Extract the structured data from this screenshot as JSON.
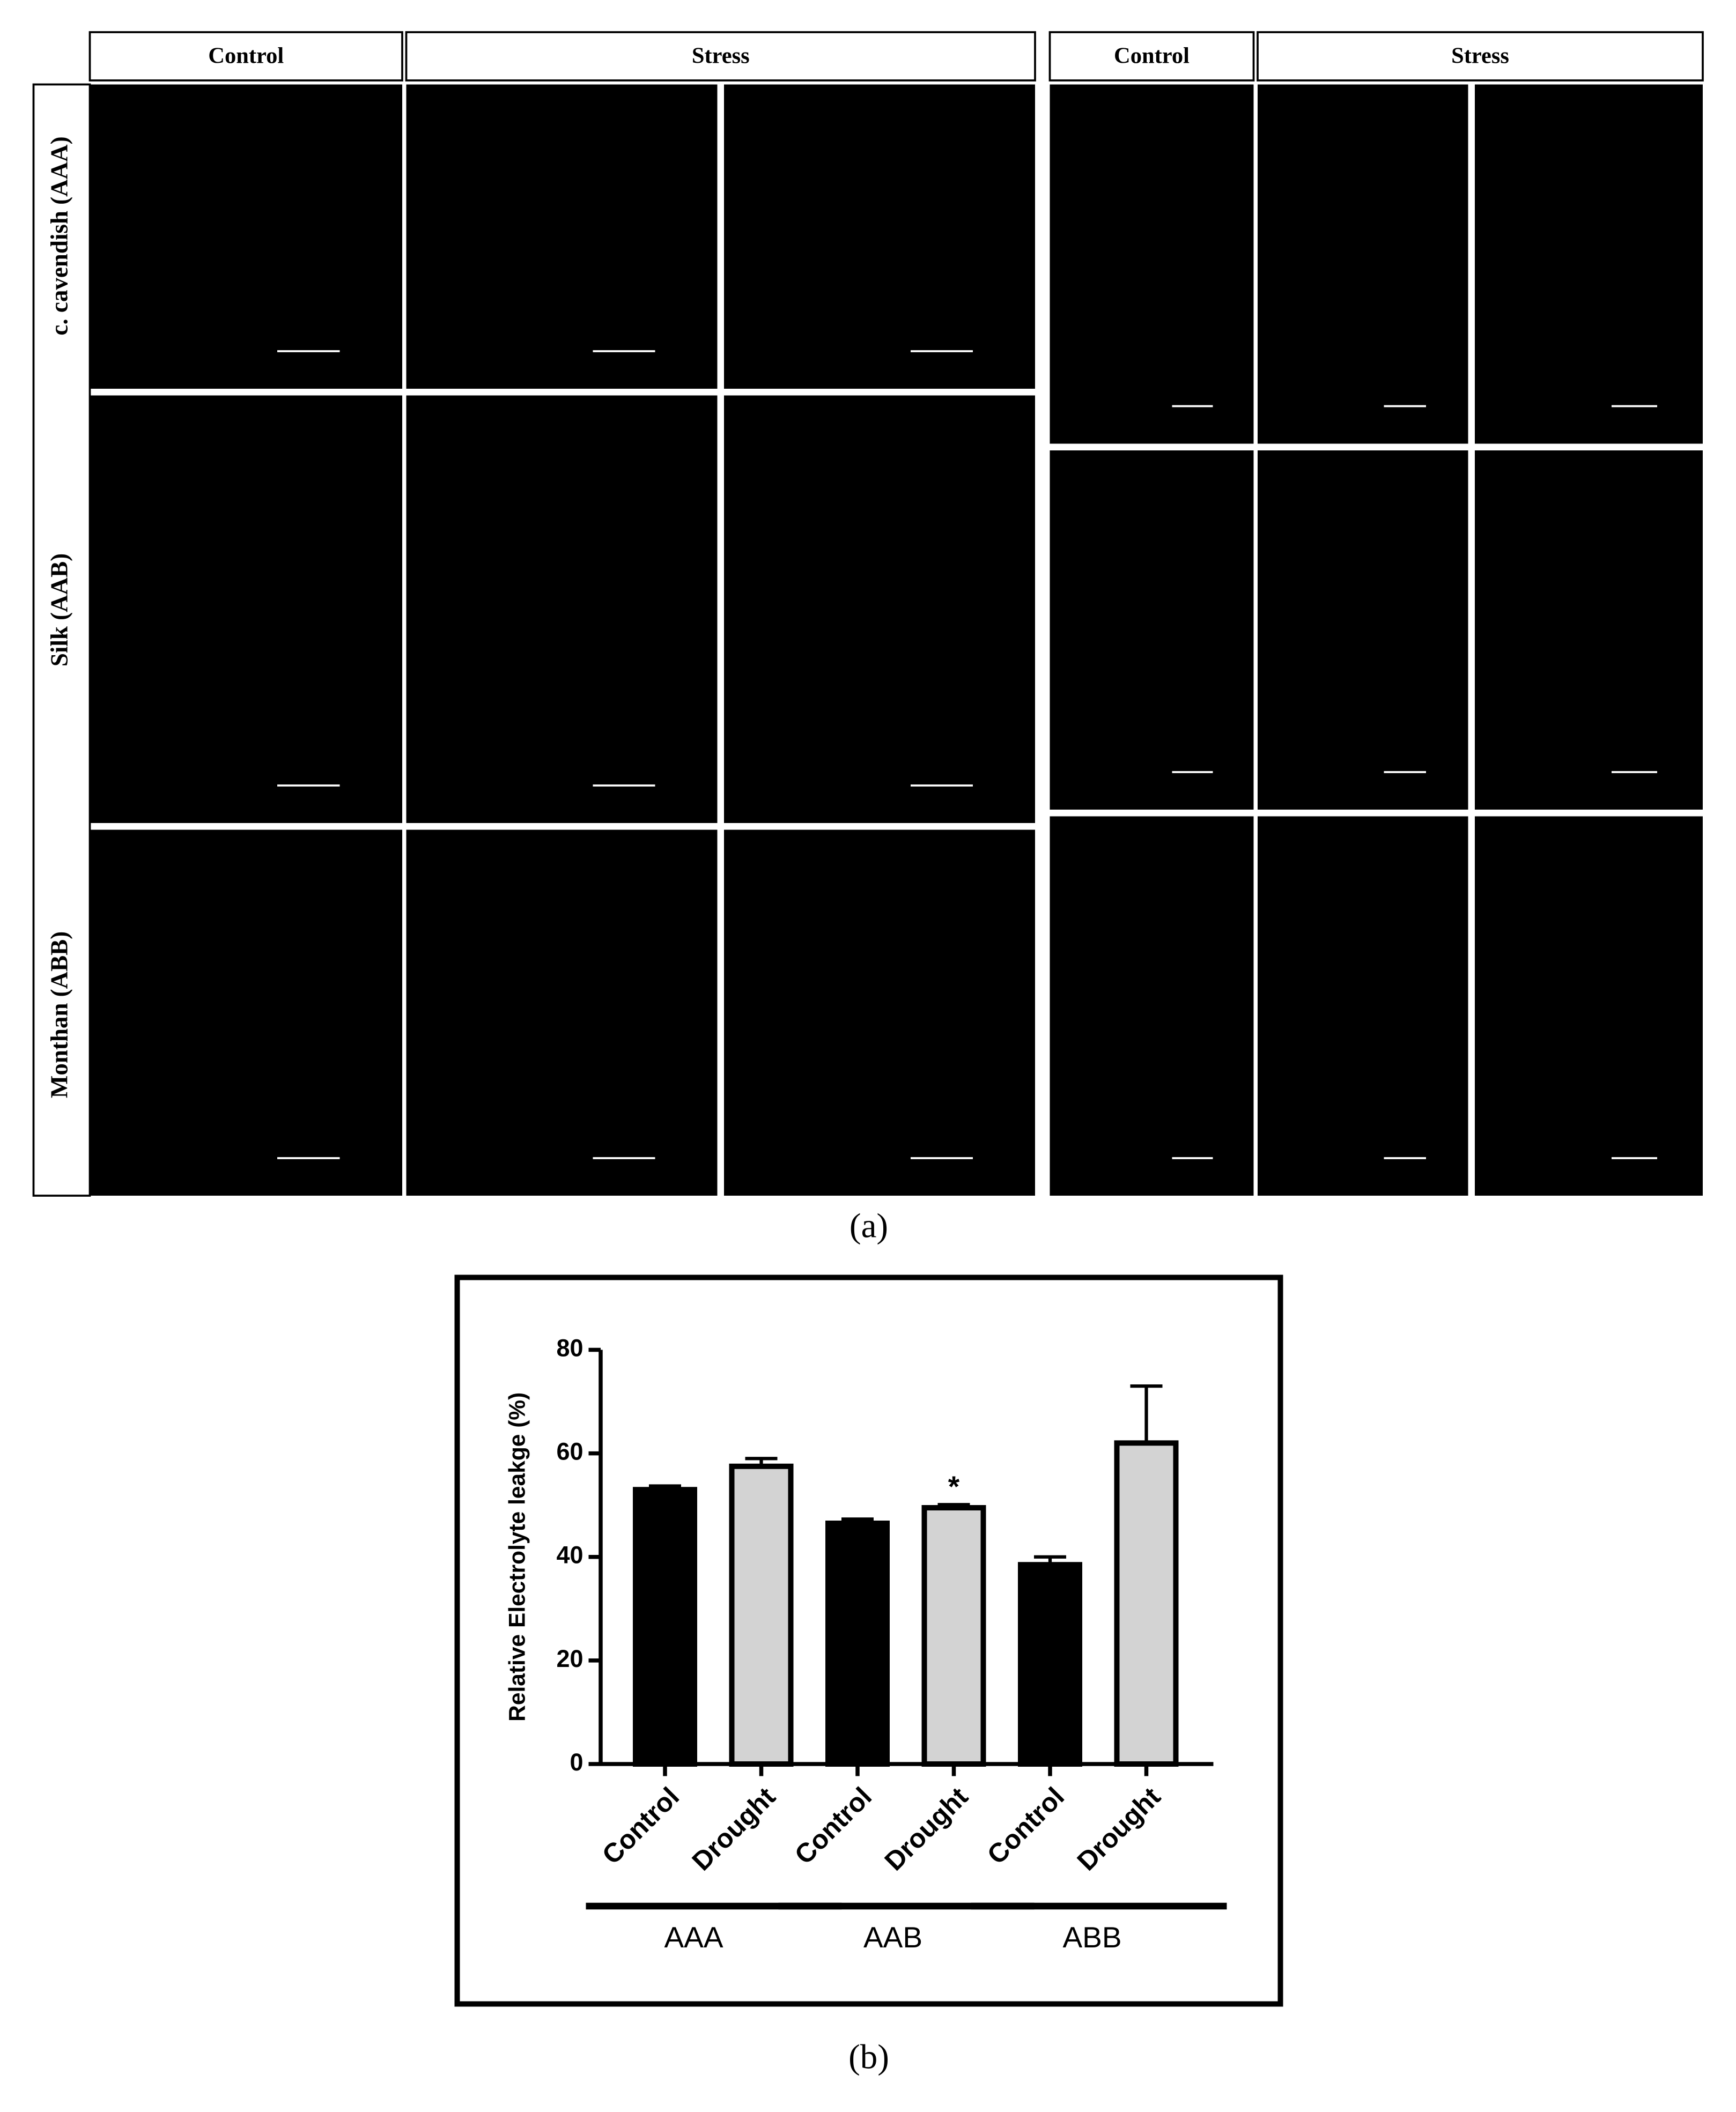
{
  "panel_a": {
    "headers_left": [
      "Control",
      "Stress"
    ],
    "headers_right": [
      "Control",
      "Stress"
    ],
    "row_labels": [
      "c. cavendish (AAA)",
      "Silk (AAB)",
      "Monthan (ABB)"
    ],
    "caption": "(a)"
  },
  "chart_data": {
    "type": "bar",
    "ylabel": "Relative Electrolyte leakge (%)",
    "categories": [
      "Control",
      "Drought",
      "Control",
      "Drought",
      "Control",
      "Drought"
    ],
    "groups": [
      "AAA",
      "AAB",
      "ABB"
    ],
    "values": [
      53,
      57.5,
      46.5,
      49.5,
      38.5,
      62
    ],
    "errors": [
      0.7,
      1.5,
      0.8,
      0.6,
      1.5,
      11
    ],
    "colors": [
      "#000000",
      "#d3d3d3",
      "#000000",
      "#d3d3d3",
      "#000000",
      "#d3d3d3"
    ],
    "annotations": [
      null,
      null,
      null,
      "*",
      null,
      null
    ],
    "ylim": [
      0,
      80
    ],
    "yticks": [
      0,
      20,
      40,
      60,
      80
    ]
  },
  "panel_b_caption": "(b)"
}
